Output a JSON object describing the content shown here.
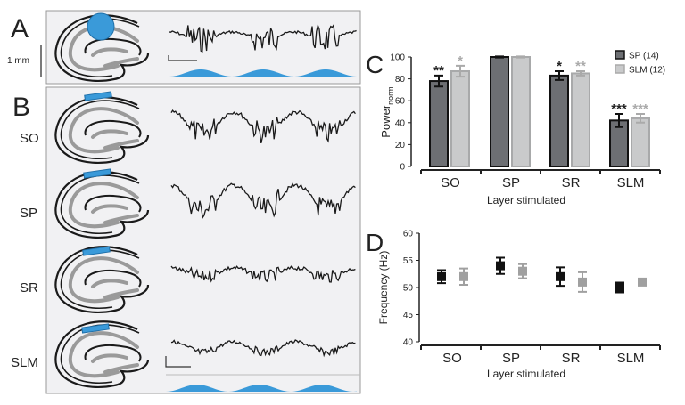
{
  "panels": {
    "a": {
      "letter": "A",
      "scale_label": "1 mm"
    },
    "b": {
      "letter": "B",
      "rows": [
        "SO",
        "SP",
        "SR",
        "SLM"
      ]
    },
    "c": {
      "letter": "C"
    },
    "d": {
      "letter": "D"
    }
  },
  "colors": {
    "stim_blue": "#3a9ad9",
    "sp_bar": "#6d6f73",
    "slm_bar": "#c9cacb",
    "slm_line": "#a8a9aa",
    "trace": "#1a1a1a"
  },
  "chart_data": [
    {
      "type": "bar",
      "panel": "C",
      "categories": [
        "SO",
        "SP",
        "SR",
        "SLM"
      ],
      "xlabel": "Layer stimulated",
      "ylabel": "Power",
      "ylabel_sub": "norm",
      "ylim": [
        0,
        100
      ],
      "yticks": [
        0,
        20,
        40,
        60,
        80,
        100
      ],
      "legend_position": "top-right",
      "series": [
        {
          "name": "SP (14)",
          "values": [
            78,
            100,
            83,
            42
          ],
          "errors": [
            5,
            0.5,
            4,
            6
          ],
          "significance": [
            "**",
            "",
            "*",
            "***"
          ]
        },
        {
          "name": "SLM (12)",
          "values": [
            87,
            100,
            85,
            44
          ],
          "errors": [
            5,
            0.5,
            2,
            4
          ],
          "significance": [
            "*",
            "",
            "**",
            "***"
          ]
        }
      ]
    },
    {
      "type": "scatter",
      "panel": "D",
      "categories": [
        "SO",
        "SP",
        "SR",
        "SLM"
      ],
      "xlabel": "Layer stimulated",
      "ylabel": "Frequency (Hz)",
      "ylim": [
        40,
        60
      ],
      "yticks": [
        40,
        45,
        50,
        55,
        60
      ],
      "series": [
        {
          "values": [
            52,
            54,
            52,
            50
          ],
          "errors": [
            1.2,
            1.5,
            1.7,
            0.9
          ]
        },
        {
          "values": [
            52,
            53,
            51,
            51
          ],
          "errors": [
            1.5,
            1.3,
            1.8,
            0.3
          ]
        }
      ]
    }
  ]
}
